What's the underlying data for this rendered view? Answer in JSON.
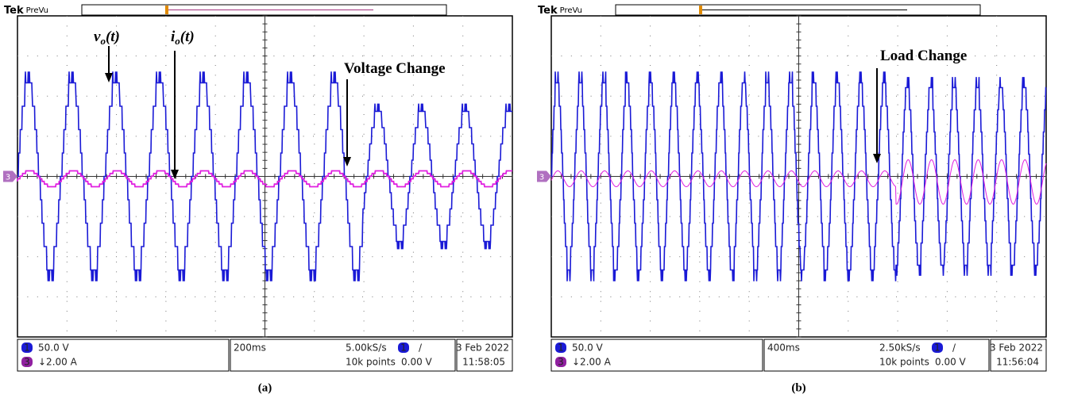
{
  "panels": [
    {
      "tek": "Tek",
      "prevu": "PreVu",
      "ch3_marker": "3",
      "annotations": [
        {
          "main": "v",
          "sub": "o",
          "tail": "(t)"
        },
        {
          "main": "i",
          "sub": "o",
          "tail": "(t)"
        },
        {
          "main": "Voltage Change"
        }
      ],
      "ch1_badge": "1",
      "ch1_scale": "50.0 V",
      "ch3_badge": "3",
      "ch3_scale": "↓2.00 A",
      "timebase": "200ms",
      "sample_rate": "5.00kS/s",
      "record_length": "10k points",
      "trigger_badge": "1",
      "trigger_slope": "/",
      "trigger_level": "0.00 V",
      "date": "3 Feb  2022",
      "time": "11:58:05",
      "caption": "(a)"
    },
    {
      "tek": "Tek",
      "prevu": "PreVu",
      "ch3_marker": "3",
      "annotations": [
        {
          "main": "Load Change"
        }
      ],
      "ch1_badge": "1",
      "ch1_scale": "50.0 V",
      "ch3_badge": "3",
      "ch3_scale": "↓2.00 A",
      "timebase": "400ms",
      "sample_rate": "2.50kS/s",
      "record_length": "10k points",
      "trigger_badge": "1",
      "trigger_slope": "/",
      "trigger_level": "0.00 V",
      "date": "3 Feb  2022",
      "time": "11:56:04",
      "caption": "(b)"
    }
  ]
}
